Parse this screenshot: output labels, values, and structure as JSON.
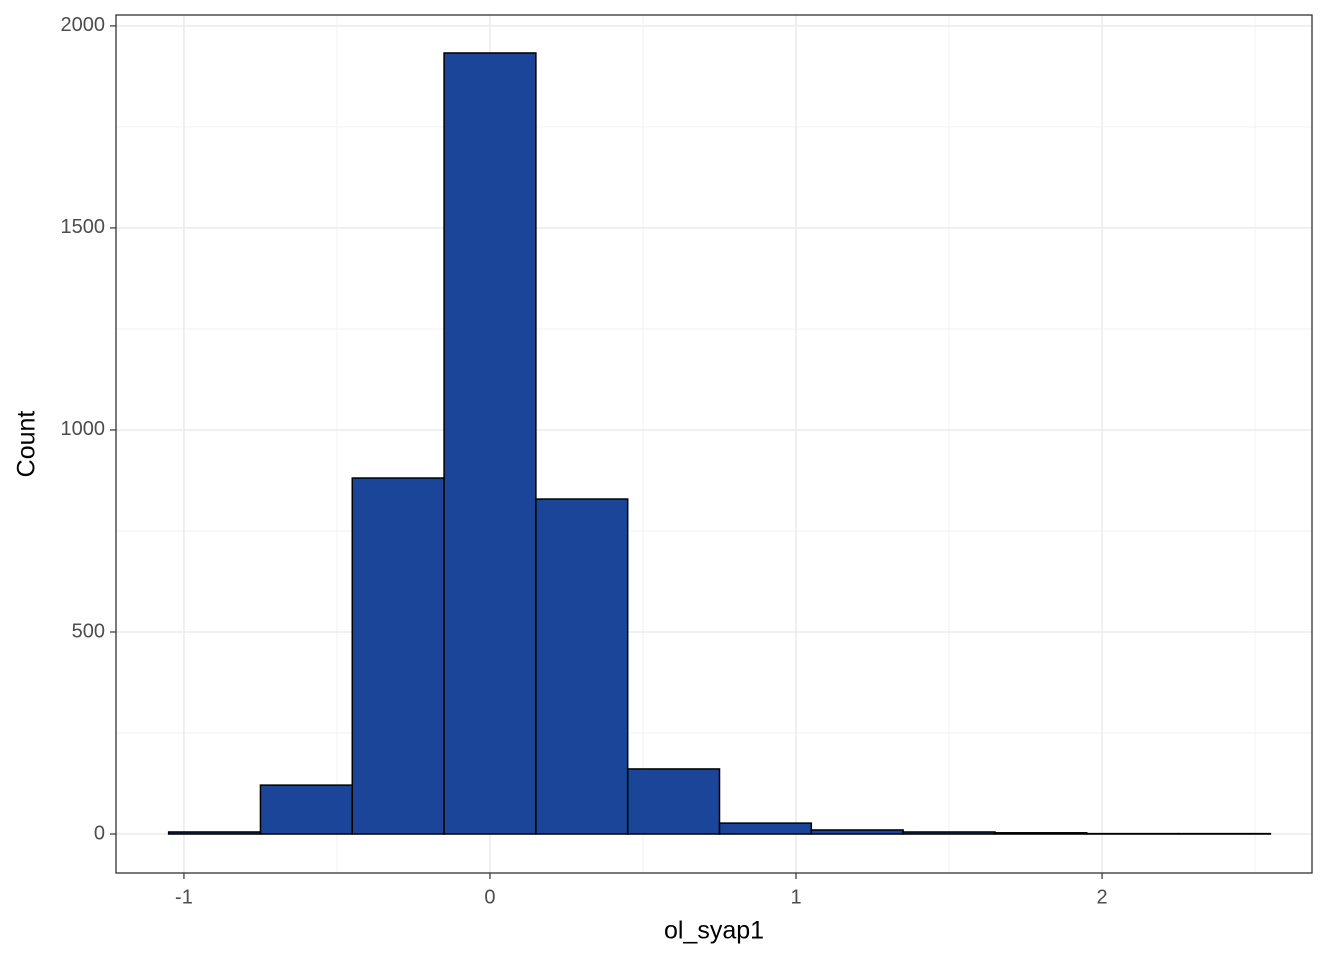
{
  "chart_data": {
    "type": "histogram",
    "x_label": "ol_syap1",
    "y_label": "Count",
    "bins": [
      -1.05,
      -0.75,
      -0.45,
      -0.15,
      0.15,
      0.45,
      0.75,
      1.05,
      1.35,
      1.65,
      1.95,
      2.25,
      2.55
    ],
    "values": [
      5,
      121,
      881,
      1933,
      829,
      161,
      27,
      10,
      5,
      3,
      1,
      1
    ],
    "color": "#1a4599",
    "xlim": [
      -1.222,
      2.686
    ],
    "ylim": [
      -96.5,
      2027
    ],
    "xticks": [
      -1,
      0,
      1,
      2
    ],
    "yticks": [
      0,
      500,
      1000,
      1500,
      2000
    ],
    "grid": true
  }
}
